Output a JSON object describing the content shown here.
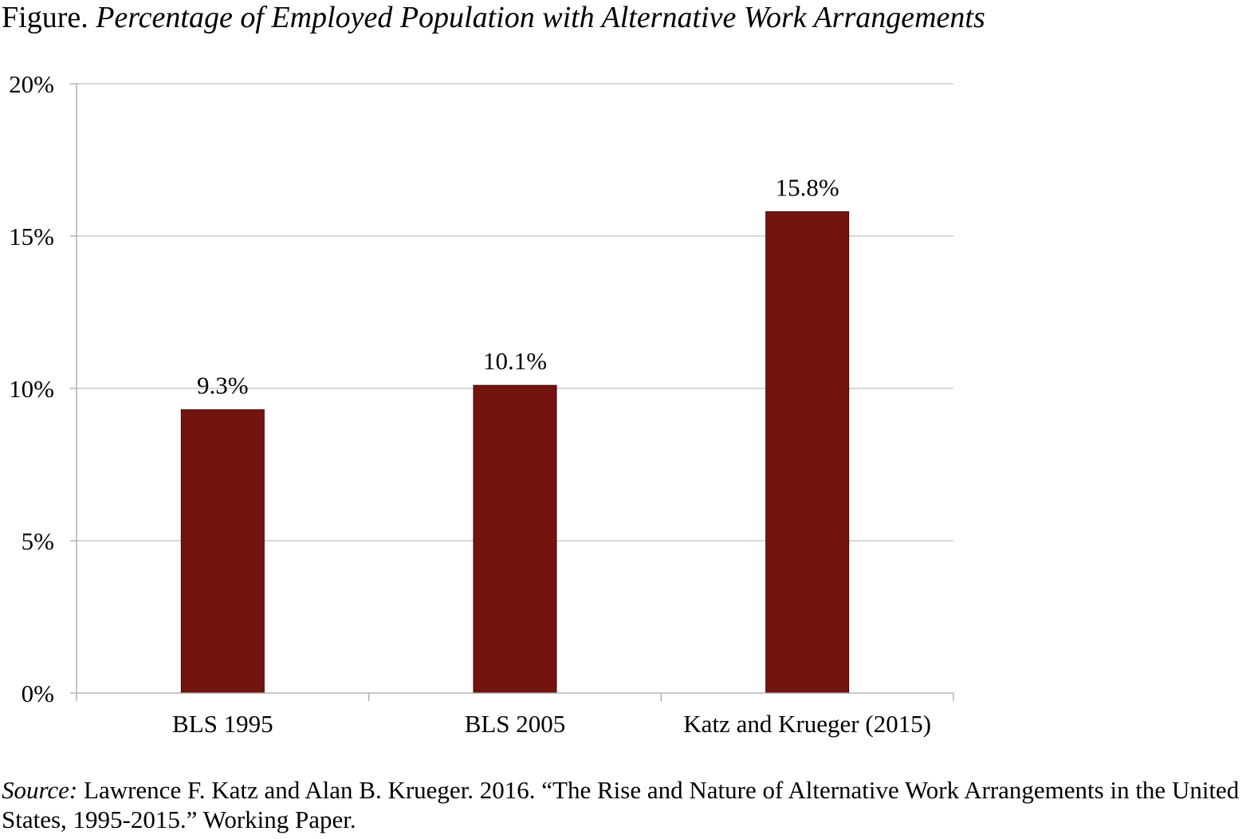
{
  "title": {
    "prefix": "Figure.",
    "text": "Percentage of Employed Population with Alternative Work Arrangements"
  },
  "source": {
    "label": "Source:",
    "text": "Lawrence F. Katz and Alan B. Krueger. 2016. “The Rise and Nature of Alternative Work Arrangements in the United States, 1995-2015.” Working Paper."
  },
  "colors": {
    "bar": "#74140e",
    "gridline": "#bfbfbf",
    "axis": "#a6a6a6"
  },
  "chart_data": {
    "type": "bar",
    "title": "Percentage of Employed Population with Alternative Work Arrangements",
    "categories": [
      "BLS 1995",
      "BLS 2005",
      "Katz and Krueger (2015)"
    ],
    "values": [
      9.3,
      10.1,
      15.8
    ],
    "data_labels": [
      "9.3%",
      "10.1%",
      "15.8%"
    ],
    "ylim": [
      0,
      20
    ],
    "yticks": [
      0,
      5,
      10,
      15,
      20
    ],
    "ytick_labels": [
      "0%",
      "5%",
      "10%",
      "15%",
      "20%"
    ],
    "xlabel": "",
    "ylabel": "",
    "grid": true,
    "legend": false
  }
}
